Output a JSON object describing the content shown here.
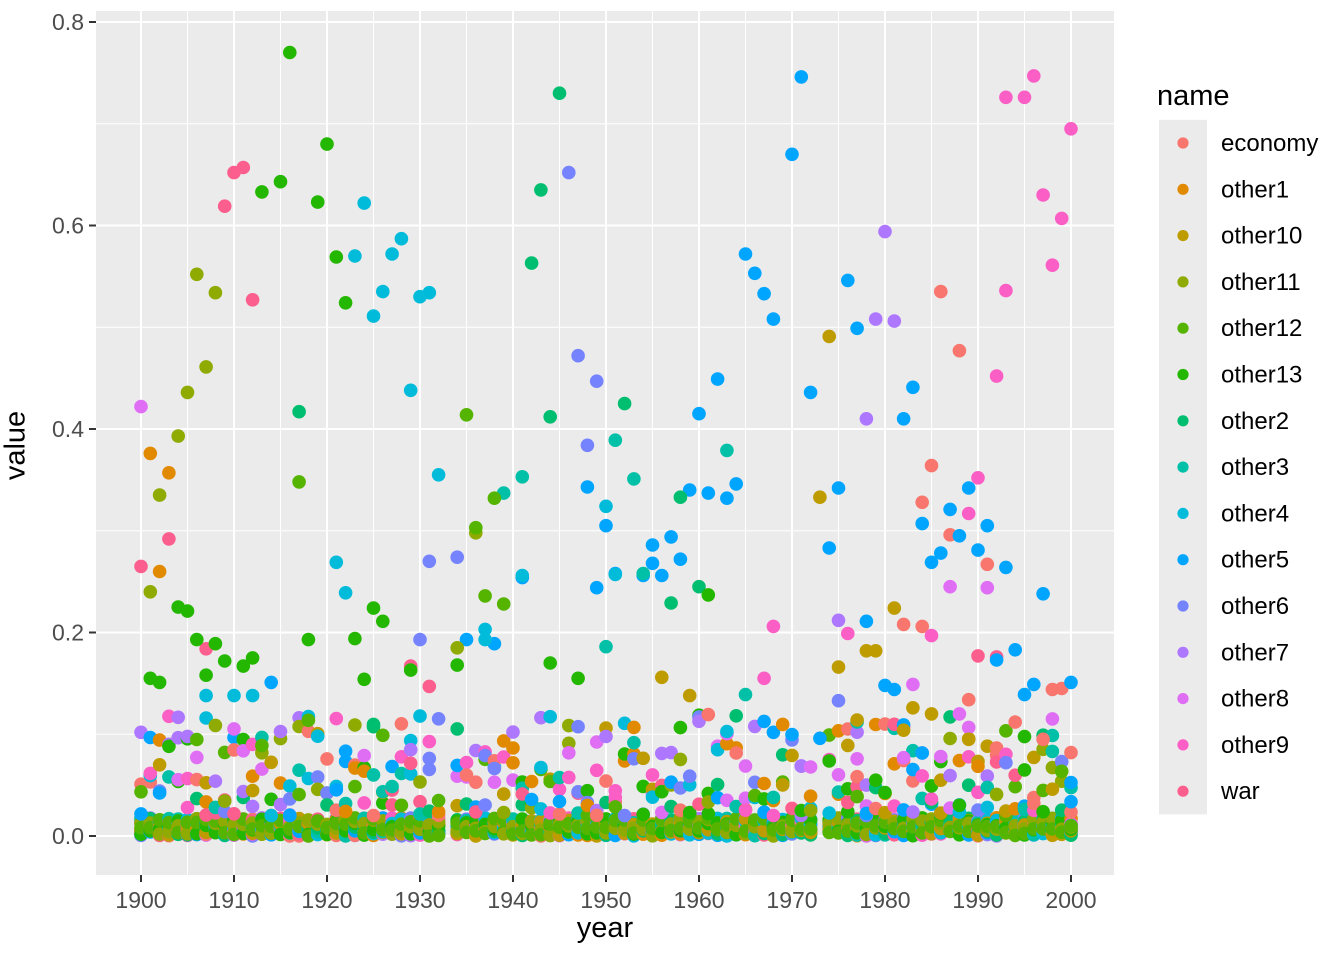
{
  "axes": {
    "x_title": "year",
    "y_title": "value",
    "x_ticks": [
      1900,
      1910,
      1920,
      1930,
      1940,
      1950,
      1960,
      1970,
      1980,
      1990,
      2000
    ],
    "x_tick_labels": [
      "1900",
      "1910",
      "1920",
      "1930",
      "1940",
      "1950",
      "1960",
      "1970",
      "1980",
      "1990",
      "2000"
    ],
    "y_ticks": [
      0.0,
      0.2,
      0.4,
      0.6,
      0.8
    ],
    "y_tick_labels": [
      "0.0",
      "0.2",
      "0.4",
      "0.6",
      "0.8"
    ],
    "x_minor_ticks": [
      1905,
      1915,
      1925,
      1935,
      1945,
      1955,
      1965,
      1975,
      1985,
      1995
    ],
    "y_minor_ticks": [
      0.1,
      0.3,
      0.5,
      0.7
    ]
  },
  "legend": {
    "title": "name",
    "entries": [
      {
        "label": "economy",
        "color": "#F8766D"
      },
      {
        "label": "other1",
        "color": "#E18A00"
      },
      {
        "label": "other10",
        "color": "#BE9C00"
      },
      {
        "label": "other11",
        "color": "#8FAA00"
      },
      {
        "label": "other12",
        "color": "#55B400"
      },
      {
        "label": "other13",
        "color": "#24B700"
      },
      {
        "label": "other2",
        "color": "#00BE70"
      },
      {
        "label": "other3",
        "color": "#00C1A8"
      },
      {
        "label": "other4",
        "color": "#00BBDA"
      },
      {
        "label": "other5",
        "color": "#00A5FF"
      },
      {
        "label": "other6",
        "color": "#7583FF"
      },
      {
        "label": "other7",
        "color": "#AE77FF"
      },
      {
        "label": "other8",
        "color": "#E06EF5"
      },
      {
        "label": "other9",
        "color": "#FB5EC5"
      },
      {
        "label": "war",
        "color": "#FC5E8E"
      }
    ]
  },
  "style": {
    "panel_bg": "#EBEBEB",
    "grid_color": "#FFFFFF",
    "tick_color": "#333333",
    "tick_label_color": "#4D4D4D",
    "legend_key_bg": "#EBEBEB",
    "point_radius": 6.8,
    "legend_point_radius": 5.6
  },
  "chart_data": {
    "type": "scatter",
    "title": "",
    "xlabel": "year",
    "ylabel": "value",
    "xlim": [
      1895.2,
      2004.6
    ],
    "ylim": [
      -0.036,
      0.812
    ],
    "grid": true,
    "legend_position": "right",
    "points": [
      [
        "war",
        1900,
        0.265
      ],
      [
        "war",
        1903,
        0.292
      ],
      [
        "war",
        1907,
        0.184
      ],
      [
        "war",
        1909,
        0.619
      ],
      [
        "war",
        1910,
        0.652
      ],
      [
        "war",
        1911,
        0.657
      ],
      [
        "war",
        1912,
        0.527
      ],
      [
        "war",
        1929,
        0.167
      ],
      [
        "war",
        1931,
        0.147
      ],
      [
        "war",
        1990,
        0.177
      ],
      [
        "war",
        1992,
        0.176
      ],
      [
        "economy",
        1982,
        0.208
      ],
      [
        "economy",
        1984,
        0.206
      ],
      [
        "economy",
        1984,
        0.328
      ],
      [
        "economy",
        1985,
        0.364
      ],
      [
        "economy",
        1986,
        0.535
      ],
      [
        "economy",
        1987,
        0.296
      ],
      [
        "economy",
        1988,
        0.477
      ],
      [
        "economy",
        1989,
        0.134
      ],
      [
        "economy",
        1991,
        0.267
      ],
      [
        "economy",
        1997,
        0.095
      ],
      [
        "economy",
        1998,
        0.144
      ],
      [
        "economy",
        1999,
        0.145
      ],
      [
        "economy",
        2000,
        0.082
      ],
      [
        "other1",
        1901,
        0.376
      ],
      [
        "other1",
        1902,
        0.26
      ],
      [
        "other1",
        1903,
        0.357
      ],
      [
        "other10",
        1956,
        0.156
      ],
      [
        "other10",
        1959,
        0.138
      ],
      [
        "other10",
        1973,
        0.333
      ],
      [
        "other10",
        1974,
        0.491
      ],
      [
        "other10",
        1975,
        0.166
      ],
      [
        "other10",
        1976,
        0.089
      ],
      [
        "other10",
        1977,
        0.114
      ],
      [
        "other10",
        1978,
        0.182
      ],
      [
        "other10",
        1979,
        0.182
      ],
      [
        "other10",
        1981,
        0.224
      ],
      [
        "other10",
        1982,
        0.104
      ],
      [
        "other10",
        1983,
        0.126
      ],
      [
        "other10",
        1985,
        0.12
      ],
      [
        "other10",
        1989,
        0.095
      ],
      [
        "other10",
        1998,
        0.046
      ],
      [
        "other11",
        1901,
        0.24
      ],
      [
        "other11",
        1902,
        0.335
      ],
      [
        "other11",
        1904,
        0.393
      ],
      [
        "other11",
        1905,
        0.436
      ],
      [
        "other11",
        1906,
        0.552
      ],
      [
        "other11",
        1907,
        0.461
      ],
      [
        "other11",
        1908,
        0.534
      ],
      [
        "other11",
        1934,
        0.185
      ],
      [
        "other11",
        1936,
        0.298
      ],
      [
        "other12",
        1917,
        0.348
      ],
      [
        "other12",
        1935,
        0.414
      ],
      [
        "other12",
        1936,
        0.303
      ],
      [
        "other12",
        1937,
        0.236
      ],
      [
        "other12",
        1938,
        0.332
      ],
      [
        "other12",
        1939,
        0.228
      ],
      [
        "other13",
        1901,
        0.155
      ],
      [
        "other13",
        1902,
        0.151
      ],
      [
        "other13",
        1904,
        0.225
      ],
      [
        "other13",
        1905,
        0.221
      ],
      [
        "other13",
        1906,
        0.193
      ],
      [
        "other13",
        1907,
        0.158
      ],
      [
        "other13",
        1908,
        0.189
      ],
      [
        "other13",
        1909,
        0.172
      ],
      [
        "other13",
        1911,
        0.167
      ],
      [
        "other13",
        1912,
        0.175
      ],
      [
        "other13",
        1913,
        0.633
      ],
      [
        "other13",
        1915,
        0.643
      ],
      [
        "other13",
        1916,
        0.77
      ],
      [
        "other13",
        1918,
        0.193
      ],
      [
        "other13",
        1919,
        0.623
      ],
      [
        "other13",
        1920,
        0.68
      ],
      [
        "other13",
        1921,
        0.569
      ],
      [
        "other13",
        1922,
        0.524
      ],
      [
        "other13",
        1923,
        0.194
      ],
      [
        "other13",
        1924,
        0.154
      ],
      [
        "other13",
        1925,
        0.224
      ],
      [
        "other13",
        1926,
        0.211
      ],
      [
        "other13",
        1929,
        0.163
      ],
      [
        "other13",
        1934,
        0.168
      ],
      [
        "other13",
        1944,
        0.17
      ],
      [
        "other13",
        1947,
        0.155
      ],
      [
        "other13",
        1961,
        0.237
      ],
      [
        "other13",
        1995,
        0.065
      ],
      [
        "other2",
        1917,
        0.417
      ],
      [
        "other2",
        1942,
        0.563
      ],
      [
        "other2",
        1943,
        0.635
      ],
      [
        "other2",
        1944,
        0.412
      ],
      [
        "other2",
        1945,
        0.73
      ],
      [
        "other2",
        1952,
        0.425
      ],
      [
        "other2",
        1957,
        0.229
      ],
      [
        "other2",
        1958,
        0.333
      ],
      [
        "other2",
        1960,
        0.245
      ],
      [
        "other3",
        1939,
        0.337
      ],
      [
        "other3",
        1941,
        0.353
      ],
      [
        "other3",
        1950,
        0.186
      ],
      [
        "other3",
        1951,
        0.389
      ],
      [
        "other3",
        1953,
        0.351
      ],
      [
        "other3",
        1954,
        0.258
      ],
      [
        "other3",
        1963,
        0.379
      ],
      [
        "other3",
        1965,
        0.139
      ],
      [
        "other3",
        1977,
        0.112
      ],
      [
        "other4",
        1907,
        0.138
      ],
      [
        "other4",
        1910,
        0.138
      ],
      [
        "other4",
        1912,
        0.138
      ],
      [
        "other4",
        1921,
        0.269
      ],
      [
        "other4",
        1922,
        0.239
      ],
      [
        "other4",
        1923,
        0.57
      ],
      [
        "other4",
        1924,
        0.622
      ],
      [
        "other4",
        1925,
        0.511
      ],
      [
        "other4",
        1926,
        0.535
      ],
      [
        "other4",
        1927,
        0.572
      ],
      [
        "other4",
        1928,
        0.587
      ],
      [
        "other4",
        1929,
        0.438
      ],
      [
        "other4",
        1930,
        0.53
      ],
      [
        "other4",
        1931,
        0.534
      ],
      [
        "other4",
        1932,
        0.355
      ],
      [
        "other4",
        1937,
        0.203
      ],
      [
        "other4",
        1937,
        0.193
      ],
      [
        "other4",
        1941,
        0.256
      ],
      [
        "other4",
        1950,
        0.324
      ],
      [
        "other4",
        1951,
        0.257
      ],
      [
        "other5",
        1914,
        0.151
      ],
      [
        "other5",
        1935,
        0.193
      ],
      [
        "other5",
        1938,
        0.189
      ],
      [
        "other5",
        1941,
        0.254
      ],
      [
        "other5",
        1948,
        0.343
      ],
      [
        "other5",
        1949,
        0.244
      ],
      [
        "other5",
        1950,
        0.305
      ],
      [
        "other5",
        1951,
        0.258
      ],
      [
        "other5",
        1954,
        0.256
      ],
      [
        "other5",
        1955,
        0.268
      ],
      [
        "other5",
        1955,
        0.286
      ],
      [
        "other5",
        1956,
        0.256
      ],
      [
        "other5",
        1957,
        0.294
      ],
      [
        "other5",
        1958,
        0.272
      ],
      [
        "other5",
        1959,
        0.34
      ],
      [
        "other5",
        1960,
        0.415
      ],
      [
        "other5",
        1961,
        0.337
      ],
      [
        "other5",
        1962,
        0.449
      ],
      [
        "other5",
        1963,
        0.332
      ],
      [
        "other5",
        1964,
        0.346
      ],
      [
        "other5",
        1965,
        0.572
      ],
      [
        "other5",
        1966,
        0.553
      ],
      [
        "other5",
        1967,
        0.533
      ],
      [
        "other5",
        1968,
        0.508
      ],
      [
        "other5",
        1970,
        0.67
      ],
      [
        "other5",
        1971,
        0.746
      ],
      [
        "other5",
        1972,
        0.436
      ],
      [
        "other5",
        1973,
        0.096
      ],
      [
        "other5",
        1974,
        0.283
      ],
      [
        "other5",
        1975,
        0.342
      ],
      [
        "other5",
        1976,
        0.546
      ],
      [
        "other5",
        1977,
        0.499
      ],
      [
        "other5",
        1978,
        0.211
      ],
      [
        "other5",
        1980,
        0.148
      ],
      [
        "other5",
        1981,
        0.144
      ],
      [
        "other5",
        1982,
        0.41
      ],
      [
        "other5",
        1983,
        0.441
      ],
      [
        "other5",
        1984,
        0.307
      ],
      [
        "other5",
        1985,
        0.269
      ],
      [
        "other5",
        1986,
        0.278
      ],
      [
        "other5",
        1987,
        0.321
      ],
      [
        "other5",
        1988,
        0.295
      ],
      [
        "other5",
        1989,
        0.342
      ],
      [
        "other5",
        1990,
        0.281
      ],
      [
        "other5",
        1991,
        0.305
      ],
      [
        "other5",
        1992,
        0.173
      ],
      [
        "other5",
        1993,
        0.264
      ],
      [
        "other5",
        1994,
        0.183
      ],
      [
        "other5",
        1995,
        0.139
      ],
      [
        "other5",
        1996,
        0.149
      ],
      [
        "other5",
        1997,
        0.238
      ],
      [
        "other5",
        2000,
        0.151
      ],
      [
        "other6",
        1930,
        0.193
      ],
      [
        "other6",
        1931,
        0.27
      ],
      [
        "other6",
        1934,
        0.274
      ],
      [
        "other6",
        1946,
        0.652
      ],
      [
        "other6",
        1947,
        0.472
      ],
      [
        "other6",
        1948,
        0.384
      ],
      [
        "other6",
        1949,
        0.447
      ],
      [
        "other6",
        1975,
        0.133
      ],
      [
        "other6",
        1993,
        0.072
      ],
      [
        "other7",
        1975,
        0.212
      ],
      [
        "other7",
        1977,
        0.102
      ],
      [
        "other7",
        1978,
        0.41
      ],
      [
        "other7",
        1979,
        0.508
      ],
      [
        "other7",
        1980,
        0.594
      ],
      [
        "other7",
        1981,
        0.506
      ],
      [
        "other8",
        1900,
        0.422
      ],
      [
        "other8",
        1982,
        0.077
      ],
      [
        "other8",
        1983,
        0.149
      ],
      [
        "other8",
        1986,
        0.078
      ],
      [
        "other8",
        1987,
        0.245
      ],
      [
        "other8",
        1988,
        0.12
      ],
      [
        "other8",
        1991,
        0.244
      ],
      [
        "other9",
        1967,
        0.155
      ],
      [
        "other9",
        1968,
        0.206
      ],
      [
        "other9",
        1976,
        0.199
      ],
      [
        "other9",
        1985,
        0.197
      ],
      [
        "other9",
        1989,
        0.317
      ],
      [
        "other9",
        1990,
        0.352
      ],
      [
        "other9",
        1992,
        0.452
      ],
      [
        "other9",
        1993,
        0.726
      ],
      [
        "other9",
        1993,
        0.536
      ],
      [
        "other9",
        1995,
        0.726
      ],
      [
        "other9",
        1996,
        0.747
      ],
      [
        "other9",
        1997,
        0.63
      ],
      [
        "other9",
        1998,
        0.561
      ],
      [
        "other9",
        1999,
        0.607
      ],
      [
        "other9",
        2000,
        0.695
      ]
    ],
    "dense_bands": {
      "comment": "near-zero strip and low scatter present for every year; rendered deterministically",
      "seed": 20240601,
      "year_start": 1900,
      "year_end": 2000,
      "exclude_years": [
        1933,
        1973
      ],
      "baseline": {
        "y_min": 0.0,
        "y_max": 0.018,
        "one_point_per_series": true,
        "draw_order": [
          "other6",
          "other7",
          "other8",
          "economy",
          "other1",
          "war",
          "other9",
          "other5",
          "other4",
          "other3",
          "other2",
          "other10",
          "other13",
          "other11",
          "other12"
        ]
      },
      "low_scatter": {
        "count_per_year": 4,
        "y_min": 0.02,
        "y_max": 0.12,
        "skew": 1.6
      }
    }
  }
}
